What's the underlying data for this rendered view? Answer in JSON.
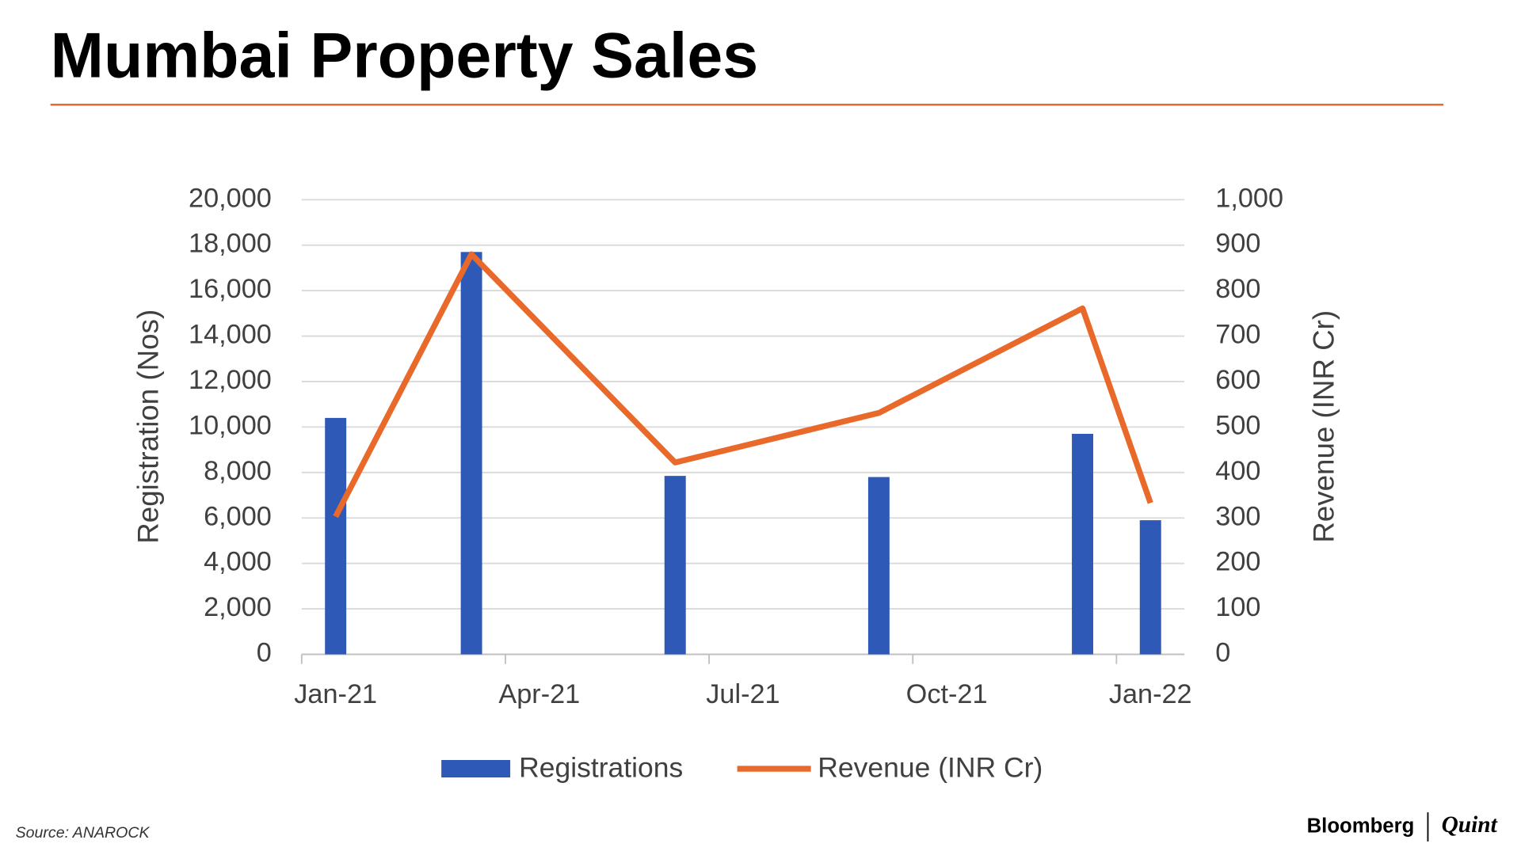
{
  "chart_data": {
    "type": "combo",
    "title": "Mumbai Property Sales",
    "y_label": "Registration (Nos)",
    "y2_label": "Revenue (INR Cr)",
    "x": [
      "2021-01",
      "2021-03",
      "2021-06",
      "2021-09",
      "2021-12",
      "2022-01"
    ],
    "xlim": [
      "2021-01",
      "2022-01"
    ],
    "xticks": [
      {
        "value": "2021-01",
        "label": "Jan-21"
      },
      {
        "value": "2021-04",
        "label": "Apr-21"
      },
      {
        "value": "2021-07",
        "label": "Jul-21"
      },
      {
        "value": "2021-10",
        "label": "Oct-21"
      },
      {
        "value": "2022-01",
        "label": "Jan-22"
      }
    ],
    "ylim": [
      0,
      20000
    ],
    "yticks": [
      0,
      {
        "value": 2000,
        "label": "2,000"
      },
      {
        "value": 4000,
        "label": "4,000"
      },
      {
        "value": 6000,
        "label": "6,000"
      },
      {
        "value": 8000,
        "label": "8,000"
      },
      {
        "value": 10000,
        "label": "10,000"
      },
      {
        "value": 12000,
        "label": "12,000"
      },
      {
        "value": 14000,
        "label": "14,000"
      },
      {
        "value": 16000,
        "label": "16,000"
      },
      {
        "value": 18000,
        "label": "18,000"
      },
      {
        "value": 20000,
        "label": "20,000"
      }
    ],
    "y2lim": [
      0,
      1000
    ],
    "y2ticks": [
      0,
      100,
      200,
      300,
      400,
      500,
      600,
      700,
      800,
      900,
      {
        "value": 1000,
        "label": "1,000"
      }
    ],
    "grid": true,
    "legend": "bottom",
    "series": [
      {
        "name": "Registrations",
        "type": "bar",
        "color": "#2f59b6",
        "values": [
          10400,
          17700,
          7850,
          7800,
          9700,
          5900
        ]
      },
      {
        "name": "Revenue (INR Cr)",
        "type": "line",
        "axis": "y2",
        "color": "#e8692a",
        "values": [
          303,
          880,
          422,
          531,
          761,
          333
        ]
      }
    ],
    "source": "Source: ANAROCK"
  },
  "branding": {
    "left": "Bloomberg",
    "right": "Quint"
  }
}
